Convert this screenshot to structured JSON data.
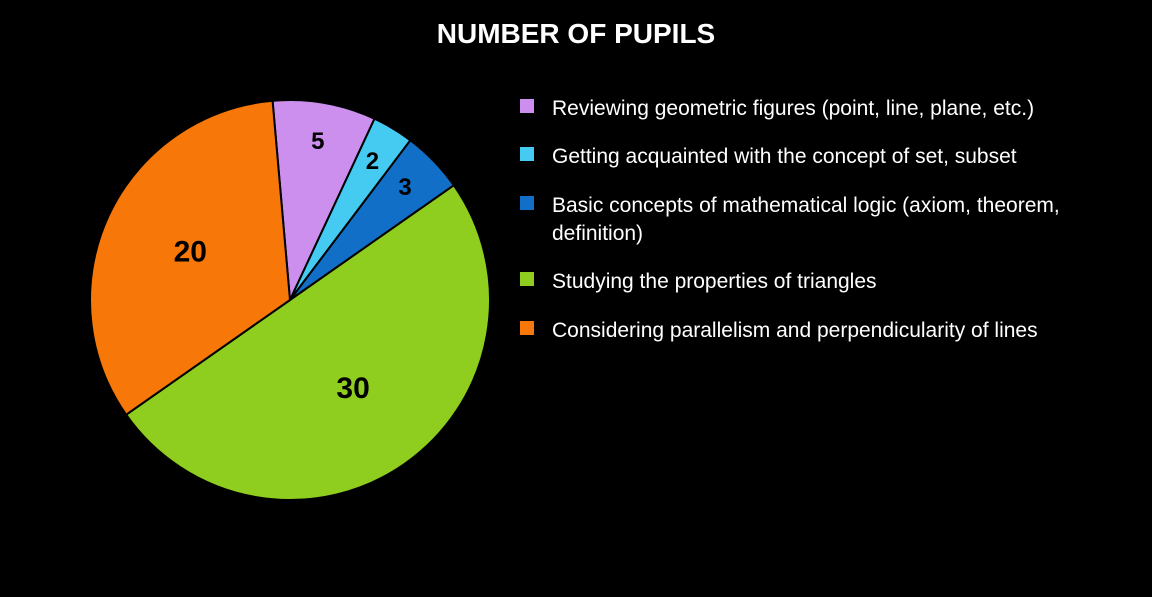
{
  "chart": {
    "type": "pie",
    "title": "NUMBER OF PUPILS",
    "title_color": "#ffffff",
    "title_fontsize": 28,
    "background_color": "#000000",
    "pie": {
      "radius": 200,
      "stroke_color": "#000000",
      "stroke_width": 2,
      "start_angle_deg": -5,
      "label_fontsize_large": 30,
      "label_fontsize_small": 24,
      "label_color": "#000000"
    },
    "legend": {
      "swatch_size": 14,
      "text_color": "#ffffff",
      "text_fontsize": 21
    },
    "slices": [
      {
        "value": 5,
        "color": "#cd8fee",
        "label": "5",
        "legend": "Reviewing geometric figures (point, line, plane, etc.)"
      },
      {
        "value": 2,
        "color": "#45cbf2",
        "label": "2",
        "legend": "Getting acquainted with the concept of set, subset"
      },
      {
        "value": 3,
        "color": "#126fc8",
        "label": "3",
        "legend": "Basic concepts of mathematical logic (axiom, theorem, definition)"
      },
      {
        "value": 30,
        "color": "#8fce1e",
        "label": "30",
        "legend": "Studying the properties of triangles"
      },
      {
        "value": 20,
        "color": "#f77709",
        "label": "20",
        "legend": "Considering parallelism and perpendicularity of lines"
      }
    ]
  }
}
